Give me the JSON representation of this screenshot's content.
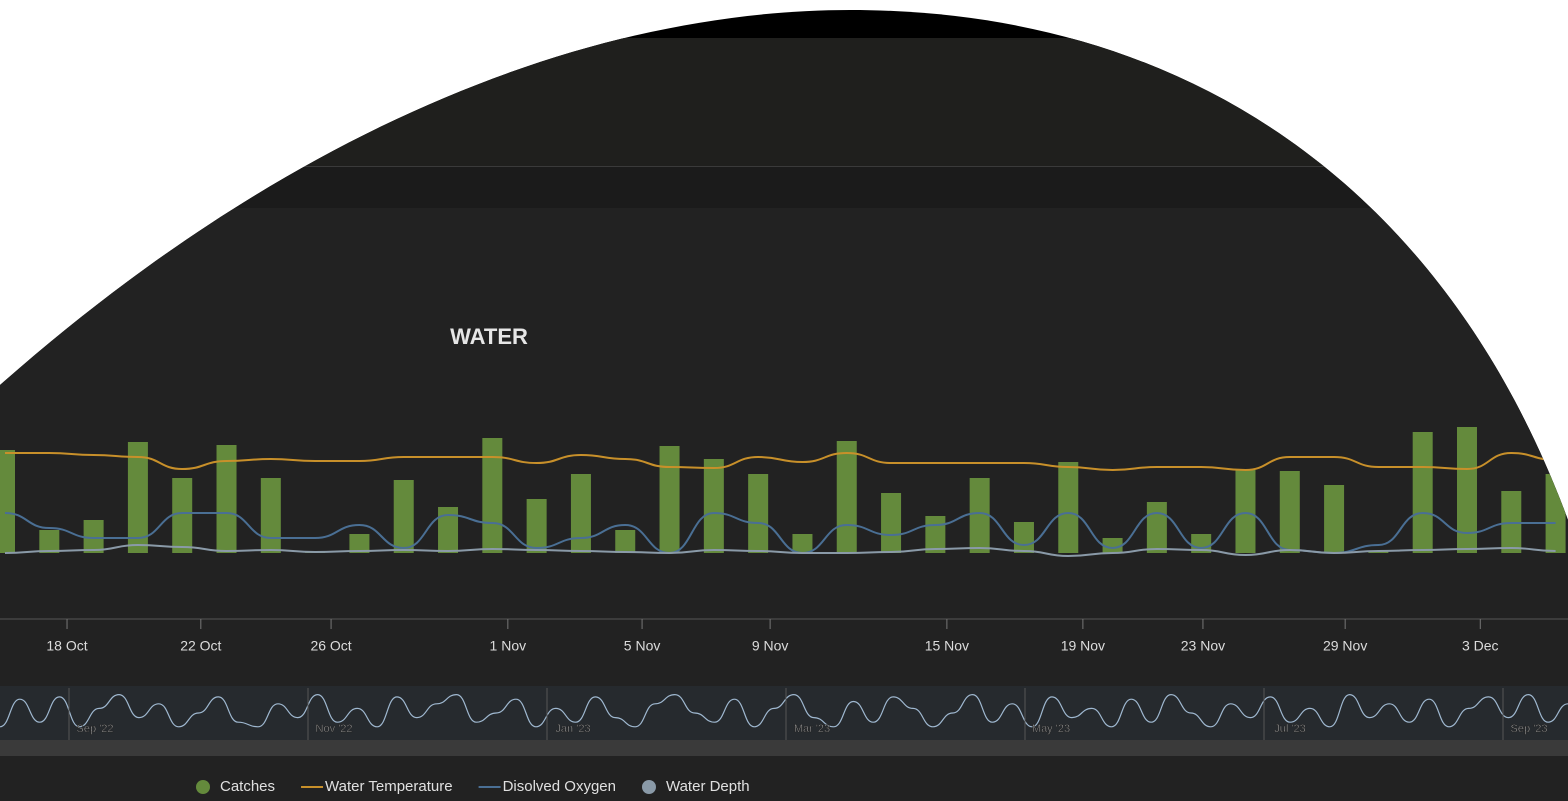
{
  "chart_data": {
    "type": "bar",
    "title": "WATER",
    "categories": [
      null,
      null,
      null,
      null,
      null,
      null,
      null,
      null,
      null,
      null,
      null,
      null,
      null,
      null,
      null,
      null,
      null,
      null,
      null,
      null,
      null,
      null,
      null,
      null,
      null,
      null,
      null,
      null,
      null,
      null,
      null,
      null,
      null,
      null,
      null,
      null
    ],
    "xlim": [
      -0.113,
      35.28
    ],
    "xticks": [
      {
        "value": 1.4,
        "label": "18 Oct"
      },
      {
        "value": 4.42,
        "label": "22 Oct"
      },
      {
        "value": 7.36,
        "label": "26 Oct"
      },
      {
        "value": 11.35,
        "label": "1 Nov"
      },
      {
        "value": 14.38,
        "label": "5 Nov"
      },
      {
        "value": 17.27,
        "label": "9 Nov"
      },
      {
        "value": 21.26,
        "label": "15 Nov"
      },
      {
        "value": 24.33,
        "label": "19 Nov"
      },
      {
        "value": 27.04,
        "label": "23 Nov"
      },
      {
        "value": 30.25,
        "label": "29 Nov"
      },
      {
        "value": 33.3,
        "label": "3 Dec"
      }
    ],
    "ylim": [
      0,
      170
    ],
    "series": [
      {
        "name": "Catches",
        "type": "bar",
        "color": "#648a3c",
        "values": [
          103,
          23,
          33,
          111,
          75,
          108,
          75,
          2,
          19,
          73,
          46,
          115,
          54,
          79,
          23,
          107,
          94,
          79,
          19,
          112,
          60,
          37,
          75,
          31,
          91,
          15,
          51,
          19,
          83,
          82,
          68,
          2,
          121,
          126,
          62,
          79
        ]
      },
      {
        "name": "Water Temperature",
        "type": "line",
        "color": "#c8902a",
        "values": [
          100,
          100,
          98,
          96,
          84,
          92,
          94,
          92,
          92,
          96,
          96,
          96,
          90,
          98,
          94,
          86,
          85,
          96,
          91,
          100,
          90,
          90,
          90,
          90,
          86,
          83,
          86,
          86,
          83,
          96,
          96,
          86,
          86,
          84,
          100,
          93
        ]
      },
      {
        "name": "Disolved Oxygen",
        "type": "line",
        "color": "#4a6f94",
        "values": [
          40,
          25,
          15,
          15,
          40,
          40,
          15,
          15,
          28,
          5,
          38,
          30,
          5,
          15,
          28,
          0,
          40,
          30,
          0,
          28,
          18,
          28,
          40,
          8,
          40,
          5,
          40,
          5,
          40,
          3,
          0,
          8,
          40,
          20,
          30,
          30
        ]
      },
      {
        "name": "Water Depth",
        "type": "line",
        "marker": "circle",
        "color": "#8a9aa8",
        "values": [
          0,
          2,
          3,
          8,
          6,
          2,
          3,
          1,
          2,
          3,
          2,
          4,
          3,
          2,
          1,
          0,
          3,
          2,
          0,
          0,
          1,
          4,
          5,
          2,
          -3,
          0,
          4,
          3,
          -2,
          3,
          0,
          2,
          3,
          4,
          5,
          2
        ]
      }
    ],
    "navigator": {
      "labels": [
        "Sep '22",
        "Nov '22",
        "Jan '23",
        "Mar '23",
        "May '23",
        "Jul '23",
        "Sep '23"
      ],
      "values": [
        20,
        80,
        30,
        85,
        20,
        60,
        90,
        40,
        70,
        20,
        50,
        85,
        30,
        20,
        70,
        40,
        90,
        30,
        60,
        20,
        85,
        40,
        70,
        90,
        30,
        50,
        80,
        20,
        60,
        30,
        85,
        40,
        20,
        70,
        90,
        50,
        30,
        80,
        20,
        60,
        90,
        40,
        20,
        75,
        30,
        85,
        60,
        20,
        50,
        90,
        30,
        70,
        20,
        85,
        40,
        60,
        20,
        80,
        30,
        90,
        50,
        20,
        70,
        40,
        85,
        30,
        60,
        20,
        90,
        40,
        70,
        30,
        80,
        20,
        60,
        85,
        40,
        90,
        30,
        70
      ]
    },
    "legend": "bottom"
  }
}
